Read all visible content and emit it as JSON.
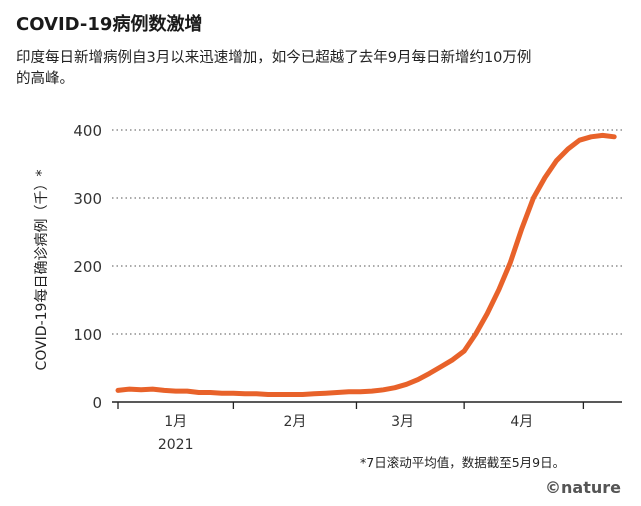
{
  "header": {
    "title": "COVID-19病例数激增",
    "subtitle": "印度每日新增病例自3月以来迅速增加，如今已超越了去年9月每日新增约10万例的高峰。"
  },
  "footnote": "*7日滚动平均值，数据截至5月9日。",
  "brand": "©nature",
  "colors": {
    "line": "#e8622a",
    "grid": "#777777",
    "text": "#222222"
  },
  "chart_data": {
    "type": "line",
    "ylabel": "COVID-19每日确诊病例（千）*",
    "ylim": [
      0,
      400
    ],
    "yticks": [
      "0",
      "100",
      "200",
      "300",
      "400"
    ],
    "xticks": [
      {
        "label": "1月",
        "sub": "2021",
        "x": 15
      },
      {
        "label": "2月",
        "sub": "",
        "x": 46
      },
      {
        "label": "3月",
        "sub": "",
        "x": 74
      },
      {
        "label": "4月",
        "sub": "",
        "x": 105
      }
    ],
    "xlim": [
      0,
      130
    ],
    "grid": "horizontal-dotted",
    "series": [
      {
        "x": [
          0,
          3,
          6,
          9,
          12,
          15,
          18,
          21,
          24,
          27,
          30,
          33,
          36,
          39,
          42,
          45,
          48,
          51,
          54,
          57,
          60,
          63,
          66,
          69,
          72,
          75,
          78,
          81,
          84,
          87,
          90,
          93,
          96,
          99,
          102,
          105,
          108,
          111,
          114,
          117,
          120,
          123,
          126,
          129
        ],
        "y": [
          17,
          19,
          18,
          19,
          17,
          16,
          16,
          14,
          14,
          13,
          13,
          12,
          12,
          11,
          11,
          11,
          11,
          12,
          13,
          14,
          15,
          15,
          16,
          18,
          21,
          26,
          33,
          42,
          52,
          62,
          75,
          100,
          130,
          165,
          205,
          255,
          300,
          330,
          355,
          372,
          385,
          390,
          392,
          390
        ]
      }
    ]
  }
}
